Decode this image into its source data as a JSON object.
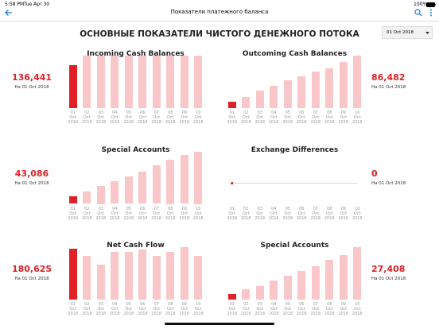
{
  "status_bar": {
    "time": "5:58 PM",
    "date": "Tue Apr 30",
    "battery": "100%"
  },
  "nav": {
    "title": "Показатели платежного баланса"
  },
  "header": {
    "title": "ОСНОВНЫЕ ПОКАЗАТЕЛИ ЧИСТОГО ДЕНЕЖНОГО ПОТОКА"
  },
  "date_filter": {
    "label": "01 Oct 2018"
  },
  "charts": [
    {
      "type": "bar",
      "title": "Incoming Cash Balances",
      "current": {
        "value": 136441,
        "label": "136,441"
      },
      "date_label": "На 01 Oct 2018",
      "color": "#f9c6c9",
      "highlight_color": "#e02027",
      "categories": [
        "01 Oct 2018",
        "02 Oct 2018",
        "03 Oct 2018",
        "04 Oct 2018",
        "05 Oct 2018",
        "06 Oct 2018",
        "07 Oct 2018",
        "08 Oct 2018",
        "09 Oct 2018",
        "10 Oct 2018"
      ],
      "values": [
        136441,
        168000,
        168000,
        167000,
        167000,
        168000,
        167000,
        168000,
        167000,
        168000
      ]
    },
    {
      "type": "bar",
      "title": "Outcoming Cash Balances",
      "current": {
        "value": 86482,
        "label": "86,482"
      },
      "date_label": "На 01 Oct 2018",
      "color": "#f9c6c9",
      "highlight_color": "#e02027",
      "categories": [
        "01 Oct 2018",
        "02 Oct 2018",
        "03 Oct 2018",
        "04 Oct 2018",
        "05 Oct 2018",
        "06 Oct 2018",
        "07 Oct 2018",
        "08 Oct 2018",
        "09 Oct 2018",
        "10 Oct 2018"
      ],
      "values": [
        86482,
        148000,
        222000,
        284000,
        358000,
        408000,
        470000,
        519000,
        593000,
        680000
      ]
    },
    {
      "type": "bar",
      "title": "Special Accounts",
      "current": {
        "value": 43086,
        "label": "43,086"
      },
      "date_label": "На 01 Oct 2018",
      "color": "#f9c6c9",
      "highlight_color": "#e02027",
      "categories": [
        "01 Oct 2018",
        "02 Oct 2018",
        "03 Oct 2018",
        "04 Oct 2018",
        "05 Oct 2018",
        "06 Oct 2018",
        "07 Oct 2018",
        "08 Oct 2018",
        "09 Oct 2018",
        "10 Oct 2018"
      ],
      "values": [
        43086,
        74000,
        105000,
        135000,
        160000,
        191000,
        228000,
        259000,
        289000,
        308000
      ]
    },
    {
      "type": "line",
      "title": "Exchange Differences",
      "current": {
        "value": 0,
        "label": "0"
      },
      "date_label": "На 01 Oct 2018",
      "color": "#f9c6c9",
      "highlight_color": "#e02027",
      "categories": [
        "01 Oct 2018",
        "02 Oct 2018",
        "03 Oct 2018",
        "04 Oct 2018",
        "05 Oct 2018",
        "06 Oct 2018",
        "07 Oct 2018",
        "08 Oct 2018",
        "09 Oct 2018",
        "10 Oct 2018"
      ],
      "values": [
        0,
        0,
        0,
        0,
        0,
        0,
        0,
        0,
        0,
        0
      ]
    },
    {
      "type": "bar",
      "title": "Net Cash Flow",
      "current": {
        "value": 180625,
        "label": "180,625"
      },
      "date_label": "На 01 Oct 2018",
      "color": "#f9c6c9",
      "highlight_color": "#e02027",
      "categories": [
        "01 Oct 2018",
        "02 Oct 2018",
        "03 Oct 2018",
        "04 Oct 2018",
        "05 Oct 2018",
        "06 Oct 2018",
        "07 Oct 2018",
        "08 Oct 2018",
        "09 Oct 2018",
        "10 Oct 2018"
      ],
      "values": [
        180625,
        154000,
        122000,
        167000,
        167000,
        176000,
        154000,
        167000,
        185000,
        154000
      ]
    },
    {
      "type": "bar",
      "title": "Special Accounts",
      "current": {
        "value": 27408,
        "label": "27,408"
      },
      "date_label": "На 01 Oct 2018",
      "color": "#f9c6c9",
      "highlight_color": "#e02027",
      "categories": [
        "01 Oct 2018",
        "02 Oct 2018",
        "03 Oct 2018",
        "04 Oct 2018",
        "05 Oct 2018",
        "06 Oct 2018",
        "07 Oct 2018",
        "08 Oct 2018",
        "09 Oct 2018",
        "10 Oct 2018"
      ],
      "values": [
        27408,
        46000,
        64000,
        87000,
        110000,
        132000,
        155000,
        183000,
        206000,
        242000
      ]
    }
  ]
}
